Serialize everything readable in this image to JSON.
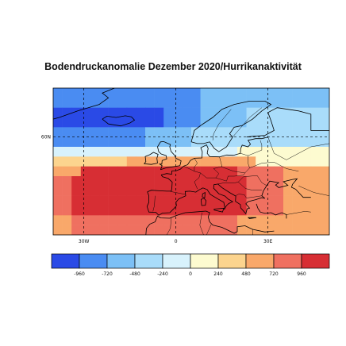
{
  "title": "Bodendruckanomalie Dezember 2020/Hurrikanaktivität",
  "map": {
    "lat_labels": [
      {
        "text": "60N",
        "lat": 60
      }
    ],
    "lon_labels": [
      {
        "text": "30W",
        "lon": -30
      },
      {
        "text": "0",
        "lon": 0
      },
      {
        "text": "30E",
        "lon": 30
      }
    ],
    "extent": {
      "lon_min": -40,
      "lon_max": 50,
      "lat_min": 30,
      "lat_max": 75
    },
    "grid_style": "dashed"
  },
  "colorbar": {
    "labels": [
      "-960",
      "-720",
      "-480",
      "-240",
      "0",
      "240",
      "480",
      "720",
      "960"
    ],
    "colors": [
      "#2a4ae6",
      "#4a8cf2",
      "#7cc0f6",
      "#a9dcfa",
      "#d8f2fc",
      "#fdfbd0",
      "#fcd48e",
      "#f9a86a",
      "#ef7060",
      "#d72e34"
    ]
  }
}
